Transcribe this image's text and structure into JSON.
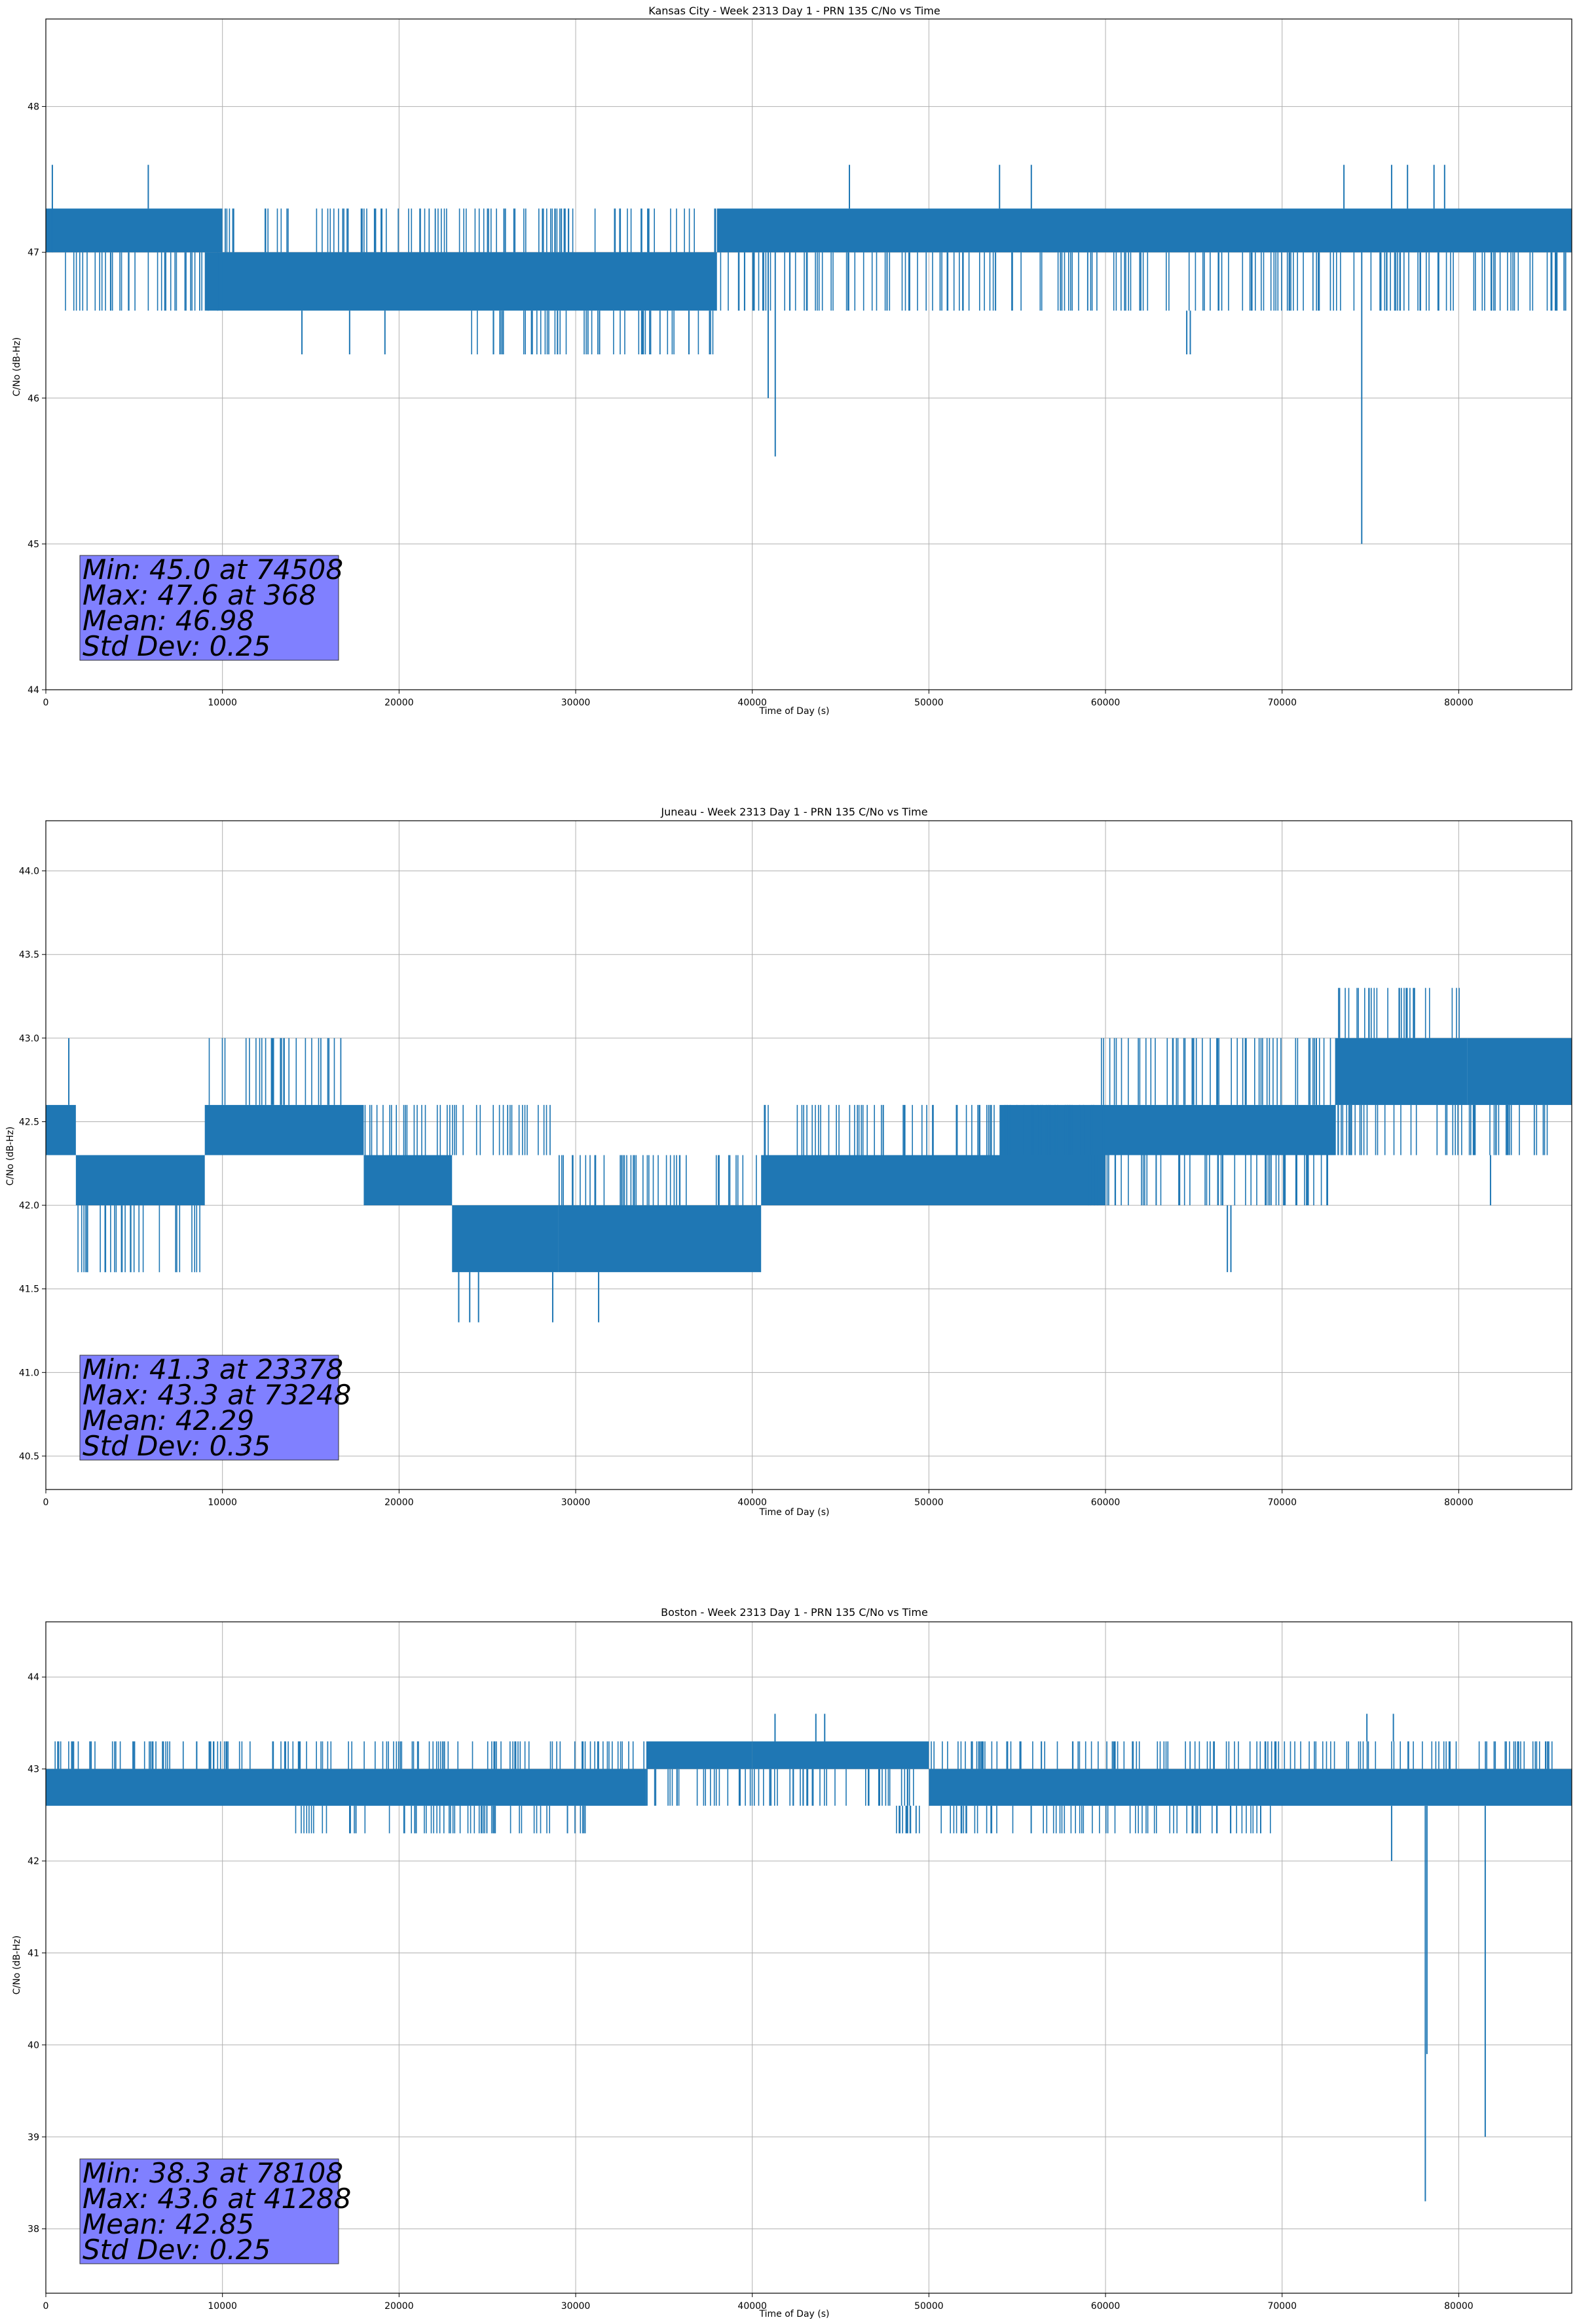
{
  "colors": {
    "series": "#1f77b4",
    "grid": "#b0b0b0",
    "stats_box": "#8080ff",
    "stats_box_edge": "#333333"
  },
  "chart_data": [
    {
      "type": "line",
      "title": "Kansas City - Week 2313 Day 1 - PRN 135 C/No vs Time",
      "xlabel": "Time of Day (s)",
      "ylabel": "C/No (dB-Hz)",
      "xlim": [
        0,
        86400
      ],
      "ylim": [
        44.0,
        48.6
      ],
      "xticks": [
        0,
        10000,
        20000,
        30000,
        40000,
        50000,
        60000,
        70000,
        80000
      ],
      "yticks": [
        44,
        45,
        46,
        47,
        48
      ],
      "ytick_labels": [
        "44",
        "45",
        "46",
        "47",
        "48"
      ],
      "grid": true,
      "stats": [
        "Min: 45.0 at 74508",
        "Max: 47.6 at 368",
        "Mean: 46.98",
        "Std Dev: 0.25"
      ],
      "stats_position": "bottom-left",
      "segments": [
        {
          "x": [
            0,
            10000
          ],
          "low": 47.0,
          "high": 47.3
        },
        {
          "x": [
            9000,
            38000
          ],
          "low": 46.6,
          "high": 47.0
        },
        {
          "x": [
            38000,
            86400
          ],
          "low": 47.0,
          "high": 47.3
        }
      ],
      "sparse": [
        {
          "x": [
            0,
            10000
          ],
          "low": 46.6,
          "high": 47.0
        },
        {
          "x": [
            10000,
            38000
          ],
          "low": 47.0,
          "high": 47.3
        },
        {
          "x": [
            24000,
            38000
          ],
          "low": 46.3,
          "high": 46.6
        },
        {
          "x": [
            38000,
            86400
          ],
          "low": 46.6,
          "high": 47.0
        }
      ],
      "spikes": [
        [
          368,
          47.0,
          47.6
        ],
        [
          5800,
          47.3,
          47.6
        ],
        [
          14500,
          46.6,
          46.3
        ],
        [
          17200,
          46.6,
          46.3
        ],
        [
          19200,
          46.6,
          46.3
        ],
        [
          40900,
          47.0,
          46.0
        ],
        [
          41300,
          47.0,
          45.6
        ],
        [
          45500,
          47.3,
          47.6
        ],
        [
          54000,
          47.3,
          47.6
        ],
        [
          55800,
          47.3,
          47.6
        ],
        [
          64600,
          46.6,
          46.3
        ],
        [
          64800,
          46.6,
          46.3
        ],
        [
          73500,
          47.3,
          47.6
        ],
        [
          74508,
          47.0,
          45.0
        ],
        [
          76200,
          47.3,
          47.6
        ],
        [
          77100,
          47.3,
          47.6
        ],
        [
          78600,
          47.3,
          47.6
        ],
        [
          79200,
          47.3,
          47.6
        ]
      ]
    },
    {
      "type": "line",
      "title": "Juneau - Week 2313 Day 1 - PRN 135 C/No vs Time",
      "xlabel": "Time of Day (s)",
      "ylabel": "C/No (dB-Hz)",
      "xlim": [
        0,
        86400
      ],
      "ylim": [
        40.3,
        44.3
      ],
      "xticks": [
        0,
        10000,
        20000,
        30000,
        40000,
        50000,
        60000,
        70000,
        80000
      ],
      "yticks": [
        40.5,
        41.0,
        41.5,
        42.0,
        42.5,
        43.0,
        43.5,
        44.0
      ],
      "ytick_labels": [
        "40.5",
        "41.0",
        "41.5",
        "42.0",
        "42.5",
        "43.0",
        "43.5",
        "44.0"
      ],
      "grid": true,
      "stats": [
        "Min: 41.3 at 23378",
        "Max: 43.3 at 73248",
        "Mean: 42.29",
        "Std Dev: 0.35"
      ],
      "stats_position": "bottom-left",
      "segments": [
        {
          "x": [
            0,
            1700
          ],
          "low": 42.3,
          "high": 42.6
        },
        {
          "x": [
            1700,
            9000
          ],
          "low": 42.0,
          "high": 42.3
        },
        {
          "x": [
            9000,
            18000
          ],
          "low": 42.3,
          "high": 42.6
        },
        {
          "x": [
            18000,
            23000
          ],
          "low": 42.0,
          "high": 42.3
        },
        {
          "x": [
            23000,
            29000
          ],
          "low": 41.6,
          "high": 42.0
        },
        {
          "x": [
            29000,
            40500
          ],
          "low": 41.6,
          "high": 42.0
        },
        {
          "x": [
            40500,
            60000
          ],
          "low": 42.0,
          "high": 42.3
        },
        {
          "x": [
            54000,
            73000
          ],
          "low": 42.3,
          "high": 42.6
        },
        {
          "x": [
            73000,
            80500
          ],
          "low": 42.6,
          "high": 43.0
        },
        {
          "x": [
            80500,
            86400
          ],
          "low": 42.6,
          "high": 43.0
        }
      ],
      "sparse": [
        {
          "x": [
            1700,
            9000
          ],
          "low": 41.6,
          "high": 42.0
        },
        {
          "x": [
            9000,
            17000
          ],
          "low": 42.6,
          "high": 43.0
        },
        {
          "x": [
            18000,
            29000
          ],
          "low": 42.3,
          "high": 42.6
        },
        {
          "x": [
            29000,
            40500
          ],
          "low": 42.0,
          "high": 42.3
        },
        {
          "x": [
            40500,
            60000
          ],
          "low": 42.3,
          "high": 42.6
        },
        {
          "x": [
            59000,
            73000
          ],
          "low": 42.6,
          "high": 43.0
        },
        {
          "x": [
            59000,
            73000
          ],
          "low": 42.0,
          "high": 42.3
        },
        {
          "x": [
            73000,
            80500
          ],
          "low": 43.0,
          "high": 43.3
        },
        {
          "x": [
            73000,
            86400
          ],
          "low": 42.3,
          "high": 42.6
        }
      ],
      "spikes": [
        [
          1300,
          42.6,
          43.0
        ],
        [
          23378,
          41.6,
          41.3
        ],
        [
          24000,
          41.6,
          41.3
        ],
        [
          24500,
          41.6,
          41.3
        ],
        [
          28700,
          41.6,
          41.3
        ],
        [
          31300,
          41.6,
          41.3
        ],
        [
          66900,
          42.0,
          41.6
        ],
        [
          67100,
          42.0,
          41.6
        ],
        [
          81800,
          42.3,
          42.0
        ]
      ]
    },
    {
      "type": "line",
      "title": "Boston - Week 2313 Day 1 - PRN 135 C/No vs Time",
      "xlabel": "Time of Day (s)",
      "ylabel": "C/No (dB-Hz)",
      "xlim": [
        0,
        86400
      ],
      "ylim": [
        37.3,
        44.6
      ],
      "xticks": [
        0,
        10000,
        20000,
        30000,
        40000,
        50000,
        60000,
        70000,
        80000
      ],
      "yticks": [
        38,
        39,
        40,
        41,
        42,
        43,
        44
      ],
      "ytick_labels": [
        "38",
        "39",
        "40",
        "41",
        "42",
        "43",
        "44"
      ],
      "grid": true,
      "stats": [
        "Min: 38.3 at 78108",
        "Max: 43.6 at 41288",
        "Mean: 42.85",
        "Std Dev: 0.25"
      ],
      "stats_position": "bottom-left",
      "segments": [
        {
          "x": [
            0,
            34000
          ],
          "low": 42.6,
          "high": 43.0
        },
        {
          "x": [
            34000,
            40000
          ],
          "low": 43.0,
          "high": 43.3
        },
        {
          "x": [
            40000,
            50000
          ],
          "low": 43.0,
          "high": 43.3
        },
        {
          "x": [
            50000,
            86400
          ],
          "low": 42.6,
          "high": 43.0
        }
      ],
      "sparse": [
        {
          "x": [
            0,
            34000
          ],
          "low": 43.0,
          "high": 43.3
        },
        {
          "x": [
            14000,
            31000
          ],
          "low": 42.3,
          "high": 42.6
        },
        {
          "x": [
            34000,
            50000
          ],
          "low": 42.6,
          "high": 43.0
        },
        {
          "x": [
            50000,
            86400
          ],
          "low": 43.0,
          "high": 43.3
        },
        {
          "x": [
            48000,
            70000
          ],
          "low": 42.3,
          "high": 42.6
        }
      ],
      "spikes": [
        [
          41288,
          43.3,
          43.6
        ],
        [
          43600,
          43.3,
          43.6
        ],
        [
          44100,
          43.3,
          43.6
        ],
        [
          74800,
          43.3,
          43.6
        ],
        [
          76300,
          43.3,
          43.6
        ],
        [
          76200,
          42.6,
          42.0
        ],
        [
          78108,
          42.6,
          38.3
        ],
        [
          78200,
          42.6,
          39.9
        ],
        [
          81500,
          42.6,
          39.0
        ]
      ]
    }
  ]
}
